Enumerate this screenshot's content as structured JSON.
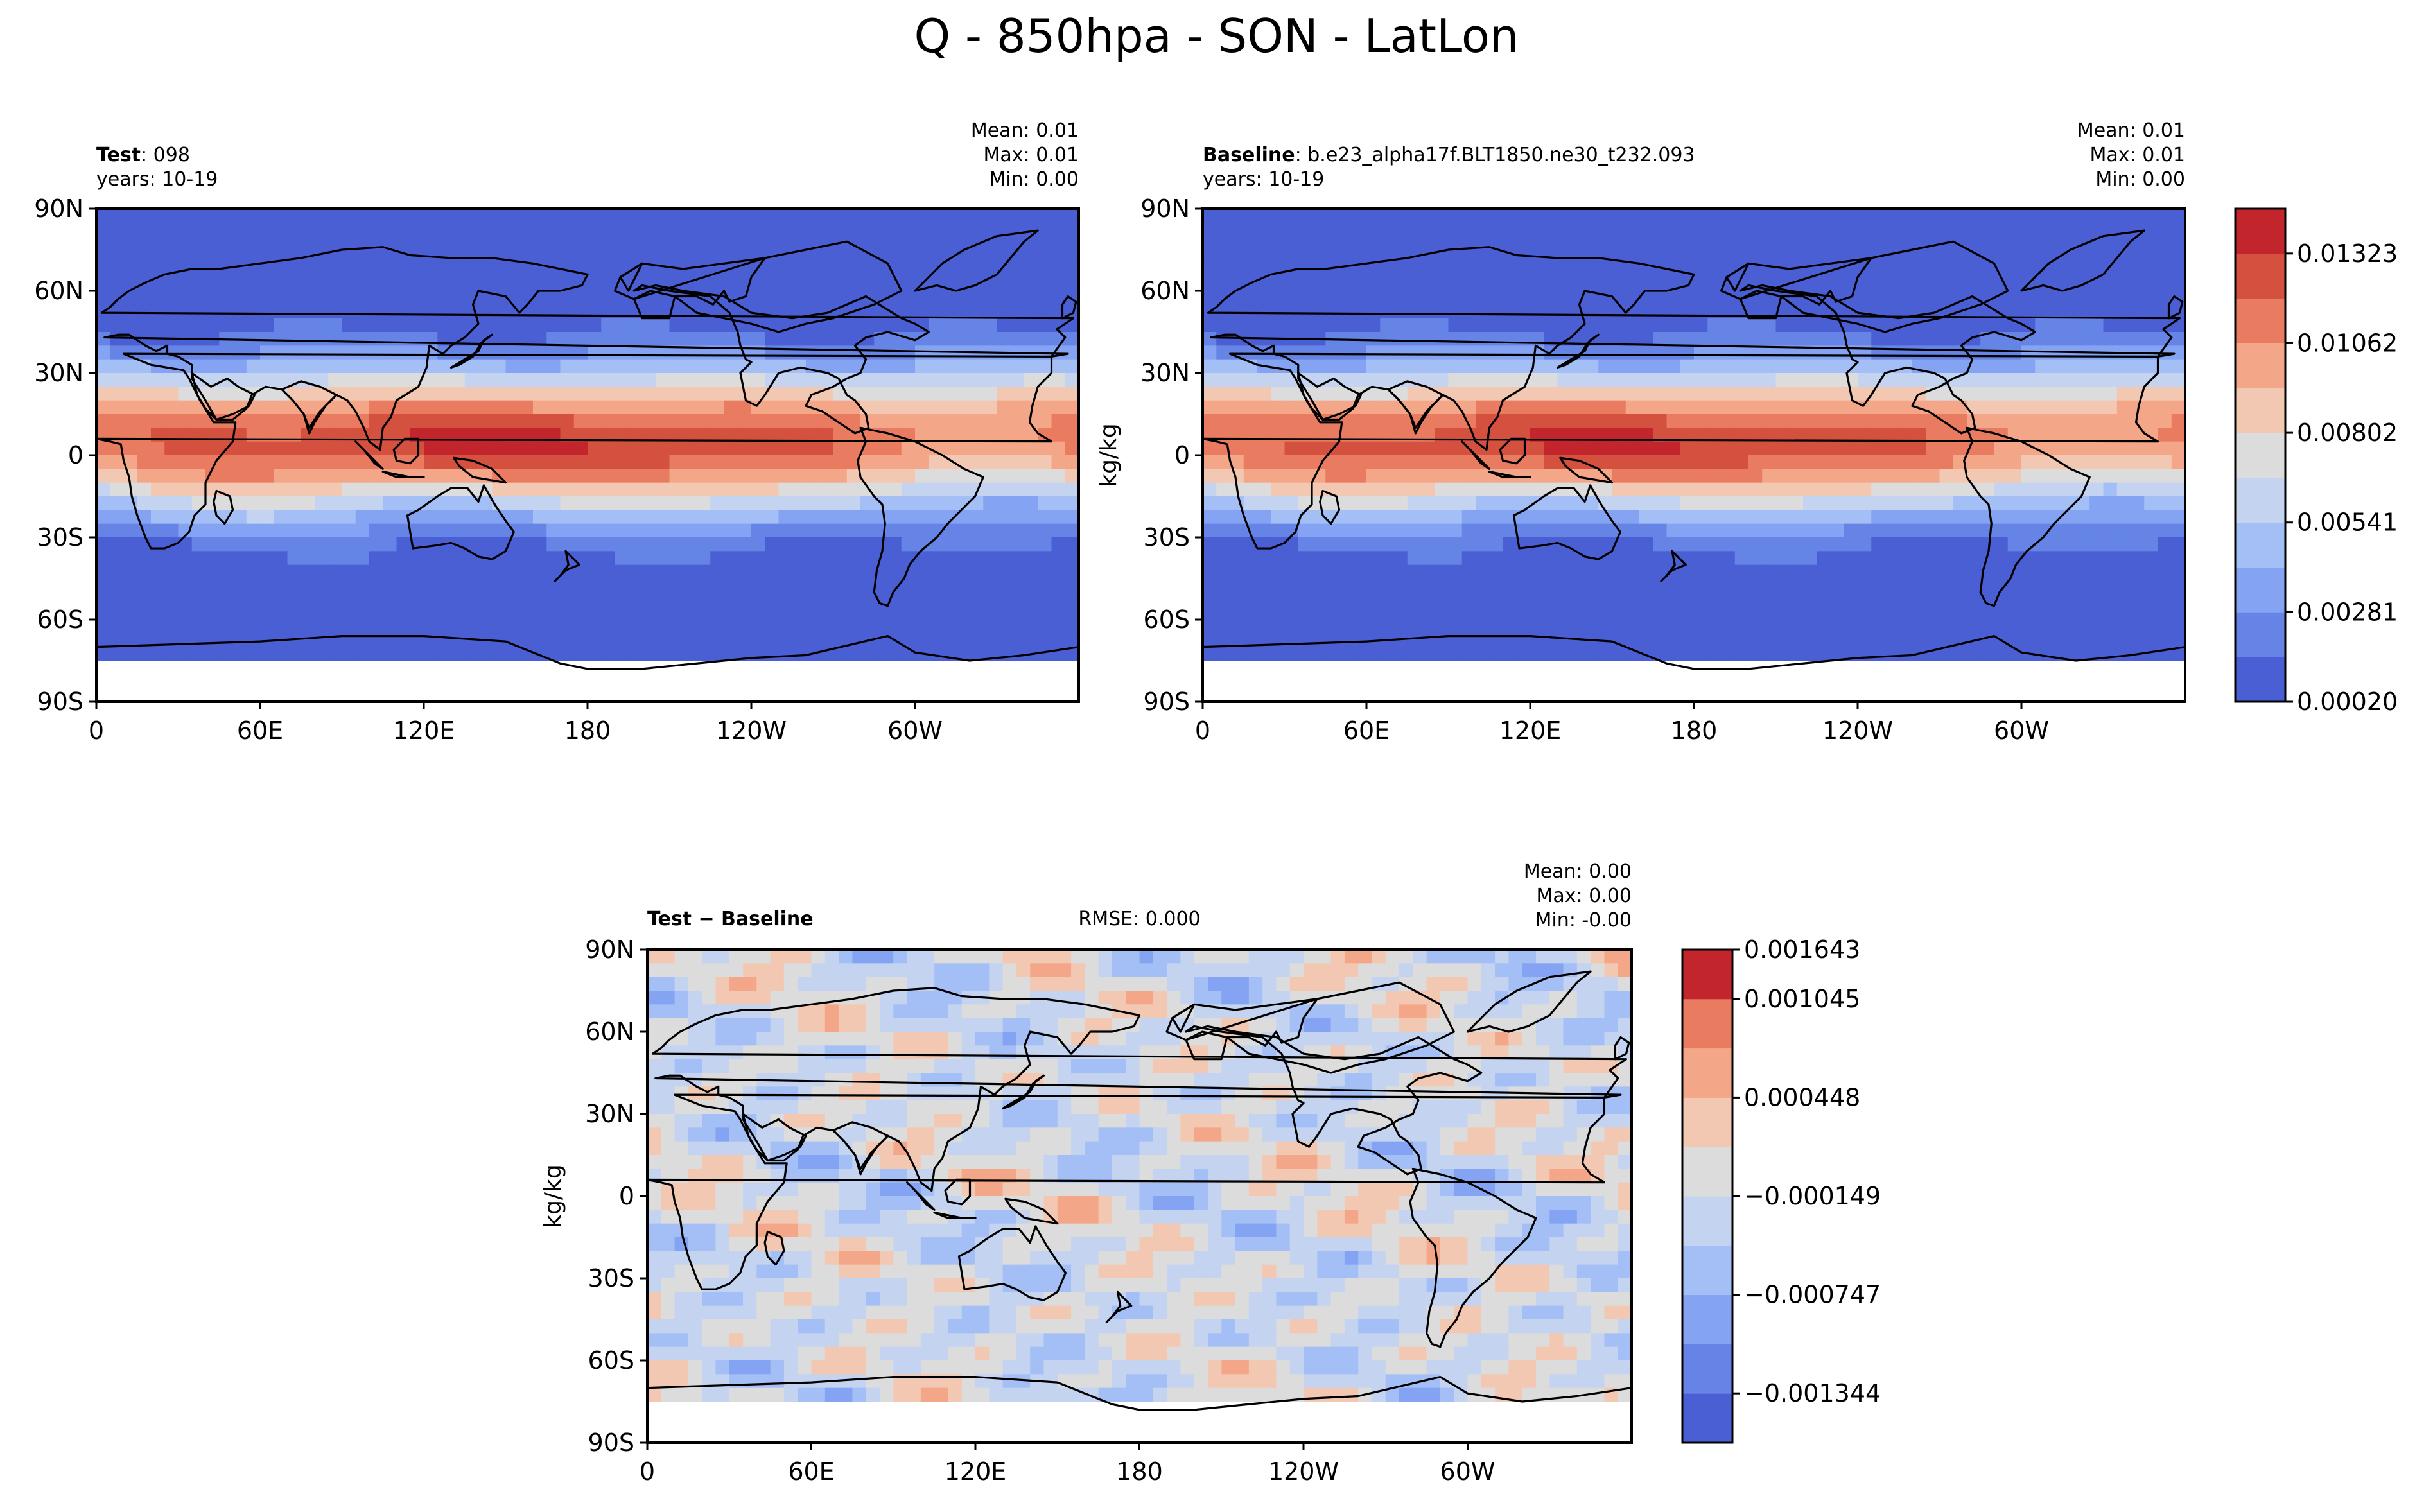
{
  "figure": {
    "title": "Q - 850hpa - SON - LatLon"
  },
  "colors": {
    "cool_warm": [
      "#4a5fd4",
      "#6584e6",
      "#84a3f2",
      "#a4bff6",
      "#c3d3f0",
      "#dcdcdc",
      "#f3c8b2",
      "#f4a788",
      "#e97b61",
      "#d4513f",
      "#c2262c"
    ],
    "land": "#ffffff",
    "coast": "#000000"
  },
  "chart_data": [
    {
      "type": "heatmap",
      "panel": "test",
      "label_bold": "Test",
      "label_rest": ": 098",
      "years": "years: 10-19",
      "stats": {
        "mean": "Mean:  0.01",
        "max": "Max:  0.01",
        "min": "Min:  0.00"
      },
      "ylabel": "",
      "lon_ticks": [
        "0",
        "60E",
        "120E",
        "180",
        "120W",
        "60W"
      ],
      "lat_ticks": [
        "90N",
        "60N",
        "30N",
        "0",
        "30S",
        "60S",
        "90S"
      ],
      "field": "specific humidity at 850 hPa",
      "units": "kg/kg",
      "value_range": [
        0.0,
        0.015
      ]
    },
    {
      "type": "heatmap",
      "panel": "baseline",
      "label_bold": "Baseline",
      "label_rest": ": b.e23_alpha17f.BLT1850.ne30_t232.093",
      "years": "years: 10-19",
      "stats": {
        "mean": "Mean:  0.01",
        "max": "Max:  0.01",
        "min": "Min:  0.00"
      },
      "ylabel": "kg/kg",
      "lon_ticks": [
        "0",
        "60E",
        "120E",
        "180",
        "120W",
        "60W"
      ],
      "lat_ticks": [
        "90N",
        "60N",
        "30N",
        "0",
        "30S",
        "60S",
        "90S"
      ],
      "colorbar_ticks": [
        "0.01323",
        "0.01062",
        "0.00802",
        "0.00541",
        "0.00281",
        "0.00020"
      ],
      "colorbar_levels": 11,
      "units": "kg/kg",
      "value_range": [
        0.0,
        0.015
      ]
    },
    {
      "type": "heatmap",
      "panel": "difference",
      "label_bold": "Test − Baseline",
      "rmse": "RMSE: 0.000",
      "stats": {
        "mean": "Mean:  0.00",
        "max": "Max:  0.00",
        "min": "Min: -0.00"
      },
      "ylabel": "kg/kg",
      "lon_ticks": [
        "0",
        "60E",
        "120E",
        "180",
        "120W",
        "60W"
      ],
      "lat_ticks": [
        "90N",
        "60N",
        "30N",
        "0",
        "30S",
        "60S",
        "90S"
      ],
      "colorbar_ticks": [
        "0.001643",
        "0.001045",
        "0.000448",
        "−0.000149",
        "−0.000747",
        "−0.001344"
      ],
      "colorbar_levels": 10,
      "units": "kg/kg",
      "value_range": [
        -0.0016,
        0.0016
      ]
    }
  ]
}
